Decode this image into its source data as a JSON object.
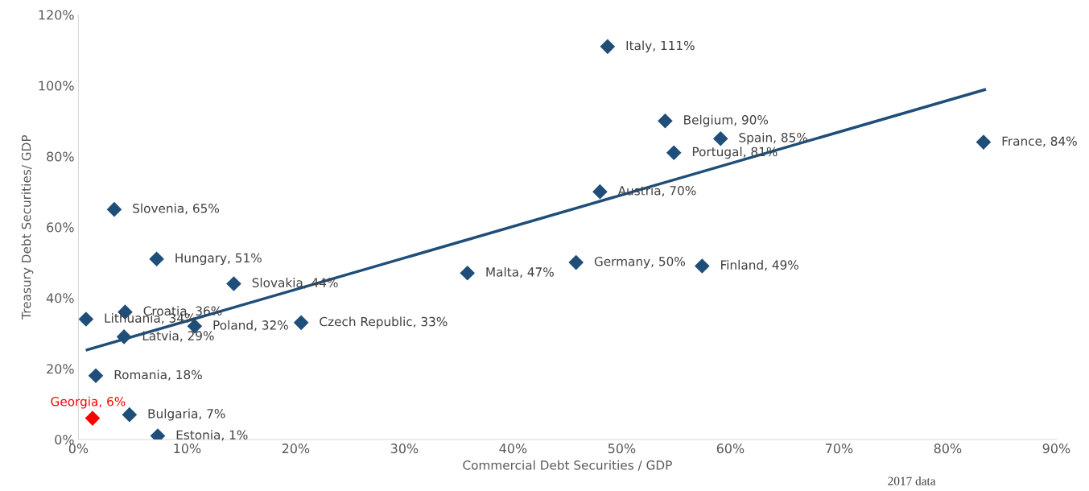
{
  "chart_data": {
    "type": "scatter",
    "xlabel": "Commercial Debt Securities / GDP",
    "ylabel": "Treasury Debt Securities/ GDP",
    "xlim": [
      0,
      90
    ],
    "ylim": [
      0,
      120
    ],
    "xticks": [
      {
        "value": 0,
        "label": "0%"
      },
      {
        "value": 10,
        "label": "10%"
      },
      {
        "value": 20,
        "label": "20%"
      },
      {
        "value": 30,
        "label": "30%"
      },
      {
        "value": 40,
        "label": "40%"
      },
      {
        "value": 50,
        "label": "50%"
      },
      {
        "value": 60,
        "label": "60%"
      },
      {
        "value": 70,
        "label": "70%"
      },
      {
        "value": 80,
        "label": "80%"
      },
      {
        "value": 90,
        "label": "90%"
      }
    ],
    "yticks": [
      {
        "value": 0,
        "label": "0%"
      },
      {
        "value": 20,
        "label": "20%"
      },
      {
        "value": 40,
        "label": "40%"
      },
      {
        "value": 60,
        "label": "60%"
      },
      {
        "value": 80,
        "label": "80%"
      },
      {
        "value": 100,
        "label": "100%"
      },
      {
        "value": 120,
        "label": "120%"
      }
    ],
    "grid": false,
    "marker": "diamond",
    "series": [
      {
        "color": "#1f4e79",
        "x": [
          48.7,
          54.0,
          59.1,
          54.8,
          83.3,
          48.0,
          3.3,
          7.2,
          14.3,
          35.8,
          45.8,
          57.4,
          4.3,
          0.7,
          10.7,
          20.5,
          4.2,
          1.6,
          4.7,
          7.3
        ],
        "values": [
          111,
          90,
          85,
          81,
          84,
          70,
          65,
          51,
          44,
          47,
          50,
          49,
          36,
          34,
          32,
          33,
          29,
          18,
          7,
          1
        ],
        "value_labels": [
          "Italy, 111%",
          "Belgium, 90%",
          "Spain, 85%",
          "Portugal, 81%",
          "France, 84%",
          "Austria, 70%",
          "Slovenia, 65%",
          "Hungary, 51%",
          "Slovakia, 44%",
          "Malta, 47%",
          "Germany, 50%",
          "Finland, 49%",
          "Croatia, 36%",
          "Lithuania, 34%",
          "Poland, 32%",
          "Czech Republic, 33%",
          "Latvia, 29%",
          "Romania, 18%",
          "Bulgaria, 7%",
          "Estonia, 1%"
        ]
      },
      {
        "color": "#ff0000",
        "x": [
          1.3
        ],
        "values": [
          6
        ],
        "value_labels": [
          "Georgia, 6%"
        ]
      },
      {
        "type": "line",
        "color": "#1f4e79",
        "marker": "none",
        "x": [
          0.8,
          83.4
        ],
        "values": [
          25.3,
          98.8
        ]
      }
    ],
    "annotations": [
      "2017 data"
    ]
  }
}
